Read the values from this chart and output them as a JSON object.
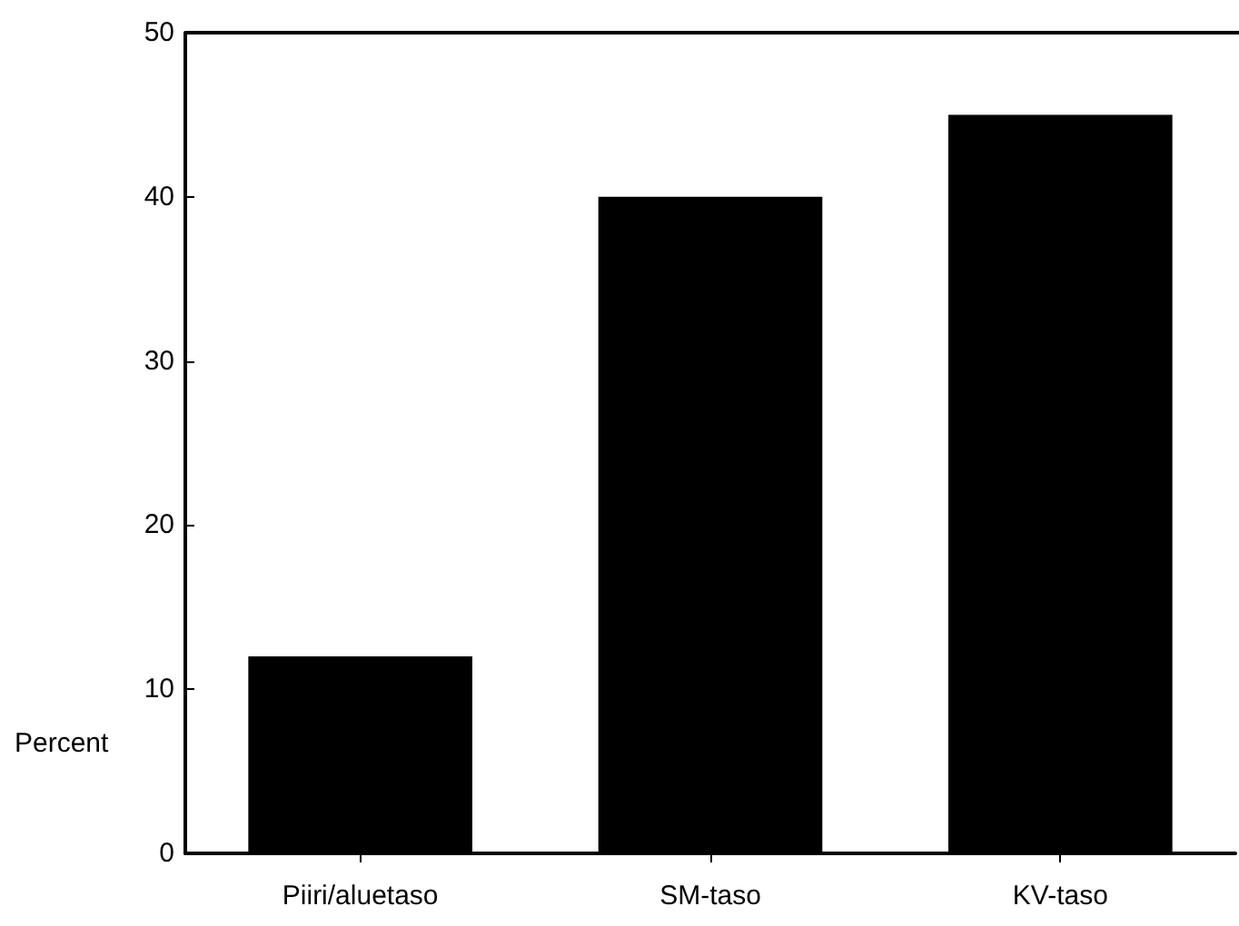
{
  "chart_data": {
    "type": "bar",
    "ylabel": "Percent",
    "categories": [
      "Piiri/aluetaso",
      "SM-taso",
      "KV-taso"
    ],
    "values": [
      12,
      40,
      45
    ],
    "color": "#000000",
    "ylim": [
      0,
      50
    ],
    "yticks": [
      0,
      10,
      20,
      30,
      40,
      50
    ],
    "grid": false
  }
}
